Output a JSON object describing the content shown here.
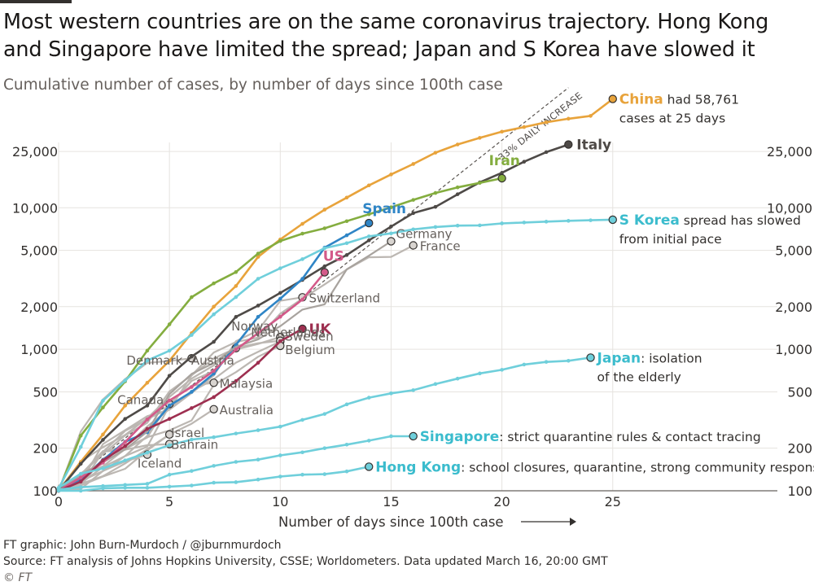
{
  "header": {
    "title": "Most western countries are on the same coronavirus trajectory. Hong Kong and Singapore have limited the spread; Japan and S Korea have slowed it",
    "subtitle": "Cumulative number of cases, by number of days since 100th case"
  },
  "footer": {
    "credit": "FT graphic: John Burn-Murdoch / @jburnmurdoch",
    "source": "Source: FT analysis of Johns Hopkins University, CSSE; Worldometers. Data updated March 16, 20:00 GMT",
    "copyright": "© FT"
  },
  "chart_data": {
    "type": "line",
    "title": "Most western countries are on the same coronavirus trajectory. Hong Kong and Singapore have limited the spread; Japan and S Korea have slowed it",
    "subtitle": "Cumulative number of cases, by number of days since 100th case",
    "xlabel": "Number of days since 100th case",
    "ylabel": "",
    "y_scale": "log",
    "xlim": [
      0,
      26
    ],
    "ylim": [
      100,
      60000
    ],
    "x_ticks": [
      "0",
      "5",
      "10",
      "15",
      "20",
      "25"
    ],
    "x_tick_values": [
      0,
      5,
      10,
      15,
      20,
      25
    ],
    "y_ticks": [
      "100",
      "200",
      "500",
      "1,000",
      "2,000",
      "5,000",
      "10,000",
      "25,000"
    ],
    "y_tick_values": [
      100,
      200,
      500,
      1000,
      2000,
      5000,
      10000,
      25000
    ],
    "grid": true,
    "reference_line": {
      "label": "33% DAILY INCREASE",
      "start": [
        0,
        100
      ],
      "growth": 1.33,
      "end_x": 23
    },
    "series": [
      {
        "name": "China",
        "color": "#e8a33b",
        "x": [
          0,
          1,
          2,
          3,
          4,
          5,
          6,
          7,
          8,
          9,
          10,
          11,
          12,
          13,
          14,
          15,
          16,
          17,
          18,
          19,
          20,
          21,
          22,
          23,
          24,
          25
        ],
        "y": [
          100,
          160,
          250,
          400,
          580,
          830,
          1300,
          2000,
          2800,
          4500,
          5970,
          7700,
          9700,
          11800,
          14400,
          17200,
          20400,
          24500,
          28000,
          31200,
          34500,
          37200,
          40200,
          42600,
          44600,
          58761
        ],
        "annotation": "had 58,761 cases at 25 days"
      },
      {
        "name": "Italy",
        "color": "#4e4a47",
        "x": [
          0,
          1,
          2,
          3,
          4,
          5,
          6,
          7,
          8,
          9,
          10,
          11,
          12,
          13,
          14,
          15,
          16,
          17,
          18,
          19,
          20,
          21,
          22,
          23
        ],
        "y": [
          100,
          155,
          229,
          322,
          400,
          650,
          888,
          1128,
          1694,
          2036,
          2502,
          3089,
          3858,
          4636,
          5883,
          7375,
          9172,
          10149,
          12462,
          15113,
          17660,
          21157,
          24747,
          27980
        ]
      },
      {
        "name": "Iran",
        "color": "#84ad3f",
        "x": [
          0,
          1,
          2,
          3,
          4,
          5,
          6,
          7,
          8,
          9,
          10,
          11,
          12,
          13,
          14,
          15,
          16,
          17,
          18,
          19,
          20
        ],
        "y": [
          100,
          245,
          388,
          593,
          978,
          1501,
          2336,
          2922,
          3513,
          4747,
          5823,
          6566,
          7161,
          8042,
          9000,
          10075,
          11364,
          12729,
          13938,
          14991,
          16169
        ]
      },
      {
        "name": "Spain",
        "color": "#2f85c6",
        "x": [
          0,
          1,
          2,
          3,
          4,
          5,
          6,
          7,
          8,
          9,
          10,
          11,
          12,
          13,
          14
        ],
        "y": [
          100,
          120,
          165,
          222,
          259,
          400,
          500,
          673,
          1073,
          1695,
          2277,
          3146,
          5232,
          6391,
          7798
        ]
      },
      {
        "name": "Germany",
        "color": "#a8a39e",
        "x": [
          0,
          1,
          2,
          3,
          4,
          5,
          6,
          7,
          8,
          9,
          10,
          11,
          12,
          13,
          14,
          15
        ],
        "y": [
          100,
          130,
          159,
          196,
          262,
          482,
          670,
          799,
          1040,
          1176,
          1457,
          1908,
          2078,
          3675,
          4585,
          5795
        ]
      },
      {
        "name": "France",
        "color": "#bcb7b2",
        "x": [
          0,
          1,
          2,
          3,
          4,
          5,
          6,
          7,
          8,
          9,
          10,
          11,
          12,
          13,
          14,
          15,
          16
        ],
        "y": [
          100,
          130,
          191,
          204,
          285,
          377,
          653,
          949,
          1126,
          1209,
          1784,
          2281,
          2876,
          3661,
          4469,
          4499,
          5423
        ]
      },
      {
        "name": "US",
        "color": "#d35a89",
        "x": [
          0,
          1,
          2,
          3,
          4,
          5,
          6,
          7,
          8,
          9,
          10,
          11,
          12
        ],
        "y": [
          100,
          124,
          158,
          221,
          319,
          435,
          541,
          704,
          994,
          1301,
          1697,
          2247,
          3499
        ]
      },
      {
        "name": "S Korea",
        "color": "#6fcfdb",
        "x": [
          0,
          1,
          2,
          3,
          4,
          5,
          6,
          7,
          8,
          9,
          10,
          11,
          12,
          13,
          14,
          15,
          16,
          17,
          18,
          19,
          20,
          21,
          22,
          23,
          24,
          25
        ],
        "y": [
          104,
          204,
          433,
          602,
          833,
          977,
          1261,
          1766,
          2337,
          3150,
          3736,
          4335,
          5186,
          5621,
          6284,
          6593,
          7041,
          7314,
          7478,
          7513,
          7755,
          7869,
          7979,
          8086,
          8162,
          8236
        ]
      },
      {
        "name": "Switzerland",
        "color": "#bcb7b2",
        "x": [
          0,
          1,
          2,
          3,
          4,
          5,
          6,
          7,
          8,
          9,
          10,
          11
        ],
        "y": [
          100,
          114,
          214,
          268,
          337,
          374,
          491,
          652,
          1139,
          1359,
          2200,
          2330
        ]
      },
      {
        "name": "UK",
        "color": "#9e2f50",
        "x": [
          0,
          1,
          2,
          3,
          4,
          5,
          6,
          7,
          8,
          9,
          10,
          11
        ],
        "y": [
          100,
          116,
          164,
          207,
          274,
          322,
          384,
          459,
          596,
          803,
          1140,
          1395
        ]
      },
      {
        "name": "Netherlands",
        "color": "#bcb7b2",
        "x": [
          0,
          1,
          2,
          3,
          4,
          5,
          6,
          7,
          8,
          9,
          10
        ],
        "y": [
          100,
          128,
          188,
          265,
          321,
          382,
          503,
          614,
          804,
          959,
          1135
        ]
      },
      {
        "name": "Norway",
        "color": "#bcb7b2",
        "x": [
          0,
          1,
          2,
          3,
          4,
          5,
          6,
          7,
          8,
          9,
          10
        ],
        "y": [
          100,
          113,
          147,
          176,
          205,
          400,
          598,
          702,
          996,
          1090,
          1221
        ]
      },
      {
        "name": "Sweden",
        "color": "#bcb7b2",
        "x": [
          0,
          1,
          2,
          3,
          4,
          5,
          6,
          7,
          8,
          9,
          10
        ],
        "y": [
          100,
          161,
          203,
          248,
          326,
          461,
          620,
          770,
          1022,
          1103,
          1150
        ]
      },
      {
        "name": "Belgium",
        "color": "#bcb7b2",
        "x": [
          0,
          1,
          2,
          3,
          4,
          5,
          6,
          7,
          8,
          9,
          10
        ],
        "y": [
          100,
          109,
          169,
          200,
          239,
          267,
          314,
          559,
          689,
          886,
          1058
        ]
      },
      {
        "name": "Denmark",
        "color": "#bcb7b2",
        "x": [
          0,
          1,
          2,
          3,
          4,
          5,
          6
        ],
        "y": [
          100,
          262,
          442,
          615,
          801,
          827,
          864
        ]
      },
      {
        "name": "Austria",
        "color": "#bcb7b2",
        "x": [
          0,
          1,
          2,
          3,
          4,
          5,
          6,
          7,
          8
        ],
        "y": [
          100,
          131,
          182,
          246,
          302,
          504,
          655,
          860,
          1018
        ]
      },
      {
        "name": "Malaysia",
        "color": "#bcb7b2",
        "x": [
          0,
          1,
          2,
          3,
          4,
          5,
          6,
          7
        ],
        "y": [
          100,
          129,
          149,
          197,
          238,
          428,
          553,
          580
        ]
      },
      {
        "name": "Canada",
        "color": "#bcb7b2",
        "x": [
          0,
          1,
          2,
          3,
          4,
          5
        ],
        "y": [
          100,
          103,
          138,
          176,
          244,
          410
        ]
      },
      {
        "name": "Australia",
        "color": "#bcb7b2",
        "x": [
          0,
          1,
          2,
          3,
          4,
          5,
          6,
          7
        ],
        "y": [
          100,
          112,
          127,
          156,
          197,
          250,
          298,
          377
        ]
      },
      {
        "name": "Israel",
        "color": "#bcb7b2",
        "x": [
          0,
          1,
          2,
          3,
          4,
          5
        ],
        "y": [
          100,
          109,
          126,
          143,
          193,
          250
        ]
      },
      {
        "name": "Bahrain",
        "color": "#bcb7b2",
        "x": [
          0,
          1,
          2,
          3,
          4,
          5
        ],
        "y": [
          109,
          110,
          189,
          195,
          210,
          214
        ]
      },
      {
        "name": "Iceland",
        "color": "#bcb7b2",
        "x": [
          0,
          1,
          2,
          3,
          4
        ],
        "y": [
          101,
          117,
          138,
          161,
          180
        ]
      },
      {
        "name": "Japan",
        "color": "#6fcfdb",
        "x": [
          0,
          1,
          2,
          3,
          4,
          5,
          6,
          7,
          8,
          9,
          10,
          11,
          12,
          13,
          14,
          15,
          16,
          17,
          18,
          19,
          20,
          21,
          22,
          23,
          24
        ],
        "y": [
          105,
          132,
          144,
          164,
          186,
          210,
          230,
          239,
          254,
          268,
          284,
          317,
          349,
          408,
          455,
          488,
          514,
          568,
          620,
          675,
          716,
          780,
          814,
          829,
          873
        ],
        "annotation": "isolation of the elderly"
      },
      {
        "name": "Singapore",
        "color": "#6fcfdb",
        "x": [
          0,
          1,
          2,
          3,
          4,
          5,
          6,
          7,
          8,
          9,
          10,
          11,
          12,
          13,
          14,
          15,
          16
        ],
        "y": [
          102,
          106,
          108,
          110,
          112,
          130,
          138,
          150,
          160,
          166,
          178,
          187,
          200,
          212,
          226,
          243,
          243
        ],
        "annotation": "strict quarantine rules & contact tracing"
      },
      {
        "name": "Hong Kong",
        "color": "#6fcfdb",
        "x": [
          0,
          1,
          2,
          3,
          4,
          5,
          6,
          7,
          8,
          9,
          10,
          11,
          12,
          13,
          14
        ],
        "y": [
          100,
          100,
          104,
          105,
          105,
          107,
          109,
          114,
          115,
          120,
          126,
          130,
          131,
          137,
          148
        ],
        "annotation": "school closures, quarantine, strong community response"
      }
    ],
    "labels": [
      {
        "series": "China",
        "text": "China",
        "extra": "had 58,761",
        "extra2": "cases at 25 days",
        "style": "bold",
        "color": "#e8a33b"
      },
      {
        "series": "Italy",
        "text": "Italy",
        "style": "bold",
        "color": "#4e4a47"
      },
      {
        "series": "Iran",
        "text": "Iran",
        "style": "bold",
        "color": "#84ad3f"
      },
      {
        "series": "Spain",
        "text": "Spain",
        "style": "bold",
        "color": "#2f85c6"
      },
      {
        "series": "US",
        "text": "US",
        "style": "bold",
        "color": "#d35a89"
      },
      {
        "series": "S Korea",
        "text": "S Korea",
        "extra": "spread has slowed",
        "extra2": "from initial pace",
        "style": "bold",
        "color": "#3bbccd"
      },
      {
        "series": "UK",
        "text": "UK",
        "style": "bold",
        "color": "#9e2f50"
      },
      {
        "series": "Japan",
        "text": "Japan",
        "extra": ": isolation",
        "extra2": "of the elderly",
        "style": "bold",
        "color": "#3bbccd"
      },
      {
        "series": "Singapore",
        "text": "Singapore",
        "extra": ": strict quarantine rules & contact tracing",
        "style": "bold",
        "color": "#3bbccd"
      },
      {
        "series": "Hong Kong",
        "text": "Hong Kong",
        "extra": ": school closures, quarantine, strong community response",
        "style": "bold",
        "color": "#3bbccd"
      },
      {
        "series": "Germany",
        "text": "Germany",
        "style": "grey"
      },
      {
        "series": "France",
        "text": "France",
        "style": "grey"
      },
      {
        "series": "Switzerland",
        "text": "Switzerland",
        "style": "grey"
      },
      {
        "series": "Netherlands",
        "text": "Netherlands",
        "style": "grey"
      },
      {
        "series": "Norway",
        "text": "Norway",
        "style": "grey"
      },
      {
        "series": "Sweden",
        "text": "Sweden",
        "style": "grey"
      },
      {
        "series": "Belgium",
        "text": "Belgium",
        "style": "grey"
      },
      {
        "series": "Denmark",
        "text": "Denmark",
        "style": "grey"
      },
      {
        "series": "Austria",
        "text": "Austria",
        "style": "grey"
      },
      {
        "series": "Malaysia",
        "text": "Malaysia",
        "style": "grey"
      },
      {
        "series": "Canada",
        "text": "Canada",
        "style": "grey"
      },
      {
        "series": "Australia",
        "text": "Australia",
        "style": "grey"
      },
      {
        "series": "Israel",
        "text": "Israel",
        "style": "grey"
      },
      {
        "series": "Bahrain",
        "text": "Bahrain",
        "style": "grey"
      },
      {
        "series": "Iceland",
        "text": "Iceland",
        "style": "grey"
      }
    ],
    "colors": {
      "grid": "#e6e3df",
      "axis": "#66605c",
      "grey_series": "#bcb7b2",
      "text": "#33302e"
    }
  }
}
